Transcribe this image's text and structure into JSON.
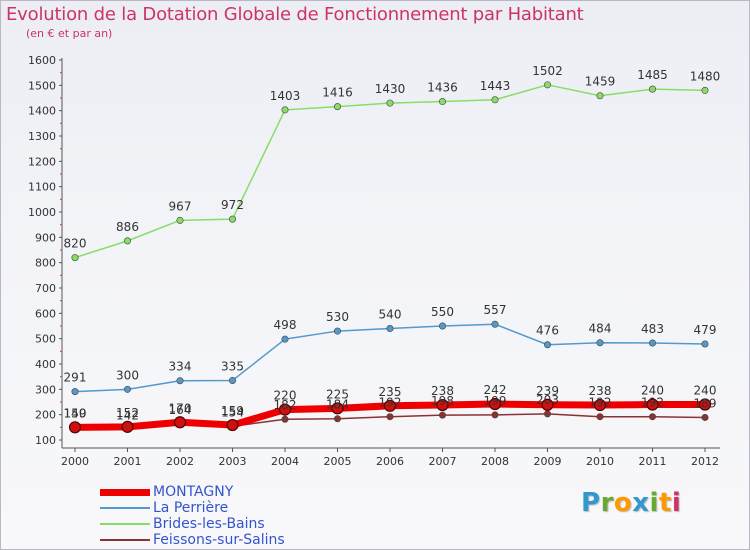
{
  "header": {
    "title": "Evolution de la Dotation Globale de Fonctionnement par Habitant",
    "subtitle": "(en € et par an)"
  },
  "logo": {
    "letters": [
      "P",
      "r",
      "o",
      "x",
      "i",
      "t",
      "i"
    ],
    "colors": [
      "#3399cc",
      "#66aa33",
      "#ff9900",
      "#3399cc",
      "#66aa33",
      "#ff9900",
      "#cc3366"
    ]
  },
  "chart_data": {
    "type": "line",
    "title": "Evolution de la Dotation Globale de Fonctionnement par Habitant",
    "subtitle": "(en € et par an)",
    "x": [
      "2000",
      "2001",
      "2002",
      "2003",
      "2004",
      "2005",
      "2006",
      "2007",
      "2008",
      "2009",
      "2010",
      "2011",
      "2012"
    ],
    "ylim": [
      100,
      1600
    ],
    "yticks": [
      100,
      200,
      300,
      400,
      500,
      600,
      700,
      800,
      900,
      1000,
      1100,
      1200,
      1300,
      1400,
      1500,
      1600
    ],
    "grid": false,
    "legend_position": "bottom-left",
    "series": [
      {
        "name": "MONTAGNY",
        "color": "#ee0000",
        "values": [
          150,
          152,
          170,
          159,
          220,
          225,
          235,
          238,
          242,
          239,
          238,
          240,
          240
        ],
        "labels": [
          "150",
          "152",
          "170",
          "159",
          "220",
          "225",
          "235",
          "238",
          "242",
          "239",
          "238",
          "240",
          "240"
        ]
      },
      {
        "name": "La Perrière",
        "color": "#5599cc",
        "values": [
          291,
          300,
          334,
          335,
          498,
          530,
          540,
          550,
          557,
          476,
          484,
          483,
          479
        ],
        "labels": [
          "291",
          "300",
          "334",
          "335",
          "498",
          "530",
          "540",
          "550",
          "557",
          "476",
          "484",
          "483",
          "479"
        ]
      },
      {
        "name": "Brides-les-Bains",
        "color": "#88dd66",
        "values": [
          820,
          886,
          967,
          972,
          1403,
          1416,
          1430,
          1436,
          1443,
          1502,
          1459,
          1485,
          1480
        ],
        "labels": [
          "820",
          "886",
          "967",
          "972",
          "1403",
          "1416",
          "1430",
          "1436",
          "1443",
          "1502",
          "1459",
          "1485",
          "1480"
        ]
      },
      {
        "name": "Feissons-sur-Salins",
        "color": "#883333",
        "values": [
          149,
          142,
          164,
          154,
          182,
          184,
          192,
          198,
          199,
          203,
          192,
          192,
          189
        ],
        "labels": [
          "149",
          "142",
          "164",
          "154",
          "182",
          "184",
          "192",
          "198",
          "199",
          "203",
          "192",
          "192",
          "189"
        ]
      }
    ]
  }
}
